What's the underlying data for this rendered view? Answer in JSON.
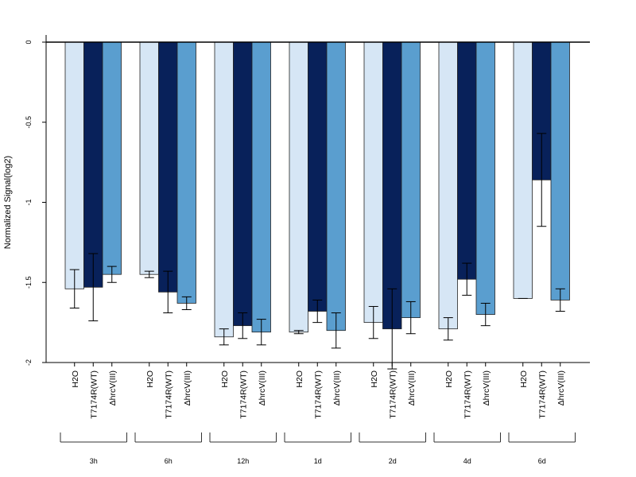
{
  "chart_data": {
    "type": "bar",
    "ylabel": "Normalized Signal(log2)",
    "ylim": [
      -2,
      0
    ],
    "yticks": [
      "0",
      "-0.5",
      "-1",
      "-1.5",
      "-2"
    ],
    "ytick_values": [
      0,
      -0.5,
      -1,
      -1.5,
      -2
    ],
    "groups": [
      "3h",
      "6h",
      "12h",
      "1d",
      "2d",
      "4d",
      "6d"
    ],
    "bar_labels": [
      "H2O",
      "T7174R(WT)",
      "ΔhrcV(III)"
    ],
    "colors": [
      "#d6e6f5",
      "#08215a",
      "#5a9ecf"
    ],
    "series": [
      {
        "name": "H2O",
        "values": [
          -1.54,
          -1.45,
          -1.84,
          -1.81,
          -1.75,
          -1.79,
          -1.6
        ],
        "err": [
          0.12,
          0.02,
          0.05,
          0.01,
          0.1,
          0.07,
          0.0
        ]
      },
      {
        "name": "T7174R(WT)",
        "values": [
          -1.53,
          -1.56,
          -1.77,
          -1.68,
          -1.79,
          -1.48,
          -0.86
        ],
        "err": [
          0.21,
          0.13,
          0.08,
          0.07,
          0.25,
          0.1,
          0.29
        ]
      },
      {
        "name": "ΔhrcV(III)",
        "values": [
          -1.45,
          -1.63,
          -1.81,
          -1.8,
          -1.72,
          -1.7,
          -1.61
        ],
        "err": [
          0.05,
          0.04,
          0.08,
          0.11,
          0.1,
          0.07,
          0.07
        ]
      }
    ]
  }
}
